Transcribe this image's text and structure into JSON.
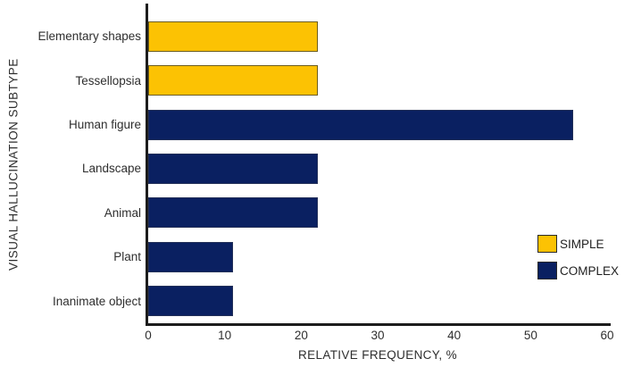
{
  "chart_data": {
    "type": "bar",
    "orientation": "horizontal",
    "title": "",
    "xlabel": "RELATIVE FREQUENCY, %",
    "ylabel": "VISUAL HALLUCINATION SUBTYPE",
    "xlim": [
      0,
      60
    ],
    "xticks": [
      0,
      10,
      20,
      30,
      40,
      50,
      60
    ],
    "grid": false,
    "categories": [
      "Elementary shapes",
      "Tessellopsia",
      "Human figure",
      "Landscape",
      "Animal",
      "Plant",
      "Inanimate object"
    ],
    "values": [
      22.2,
      22.2,
      55.6,
      22.2,
      22.2,
      11.1,
      11.1
    ],
    "groups": [
      "SIMPLE",
      "SIMPLE",
      "COMPLEX",
      "COMPLEX",
      "COMPLEX",
      "COMPLEX",
      "COMPLEX"
    ],
    "group_colors": {
      "SIMPLE": "#fcc203",
      "COMPLEX": "#0a2061"
    },
    "group_border_colors": {
      "SIMPLE": "#6a5c1c",
      "COMPLEX": "#233058"
    },
    "legend": {
      "position": "inside-right",
      "entries": [
        {
          "label": "SIMPLE",
          "color": "#fcc203"
        },
        {
          "label": "COMPLEX",
          "color": "#0a2061"
        }
      ]
    },
    "axis_color": "#1c1c1c",
    "text_color": "#2e2e2e",
    "background_color": "#ffffff"
  }
}
